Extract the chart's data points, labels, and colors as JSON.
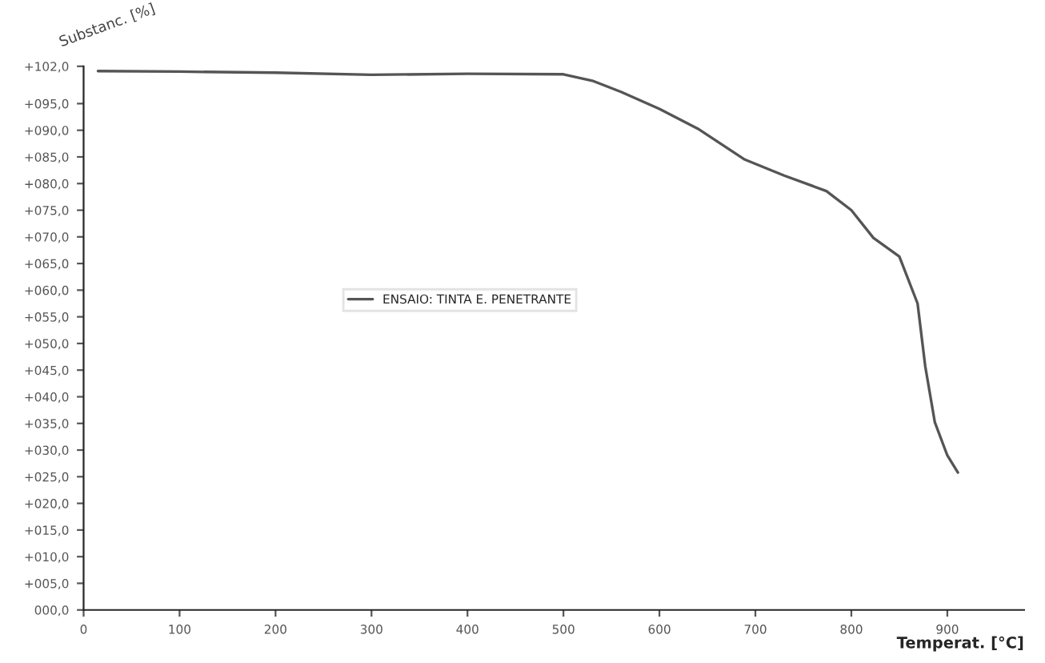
{
  "chart_data": {
    "type": "line",
    "xlabel": "Temperat. [°C]",
    "ylabel": "Substanc. [%]",
    "x": [
      15,
      100,
      200,
      300,
      400,
      500,
      530,
      560,
      600,
      640,
      689,
      730,
      774,
      800,
      823,
      850,
      869,
      877,
      887,
      900,
      911
    ],
    "series": [
      {
        "name": "ENSAIO: TINTA E. PENETRANTE",
        "color": "#555555",
        "values": [
          101.1,
          101.0,
          100.8,
          100.4,
          100.6,
          100.5,
          99.3,
          97.2,
          94.0,
          90.3,
          84.5,
          81.5,
          78.6,
          75.0,
          69.8,
          66.3,
          57.5,
          45.7,
          35.2,
          29.0,
          25.8
        ]
      }
    ],
    "xlim": [
      0,
      980
    ],
    "xticks": [
      0,
      100,
      200,
      300,
      400,
      500,
      600,
      700,
      800,
      900
    ],
    "ylim": [
      0,
      102
    ],
    "yticks": [
      {
        "value": 102,
        "label": "+102,0"
      },
      {
        "value": 95,
        "label": "+095,0"
      },
      {
        "value": 90,
        "label": "+090,0"
      },
      {
        "value": 85,
        "label": "+085,0"
      },
      {
        "value": 80,
        "label": "+080,0"
      },
      {
        "value": 75,
        "label": "+075,0"
      },
      {
        "value": 70,
        "label": "+070,0"
      },
      {
        "value": 65,
        "label": "+065,0"
      },
      {
        "value": 60,
        "label": "+060,0"
      },
      {
        "value": 55,
        "label": "+055,0"
      },
      {
        "value": 50,
        "label": "+050,0"
      },
      {
        "value": 45,
        "label": "+045,0"
      },
      {
        "value": 40,
        "label": "+040,0"
      },
      {
        "value": 35,
        "label": "+035,0"
      },
      {
        "value": 30,
        "label": "+030,0"
      },
      {
        "value": 25,
        "label": "+025,0"
      },
      {
        "value": 20,
        "label": "+020,0"
      },
      {
        "value": 15,
        "label": "+015,0"
      },
      {
        "value": 10,
        "label": "+010,0"
      },
      {
        "value": 5,
        "label": "+005,0"
      },
      {
        "value": 0,
        "label": "000,0"
      }
    ],
    "grid": false,
    "legend": "center left",
    "marker": "none",
    "line_style": "solid"
  }
}
